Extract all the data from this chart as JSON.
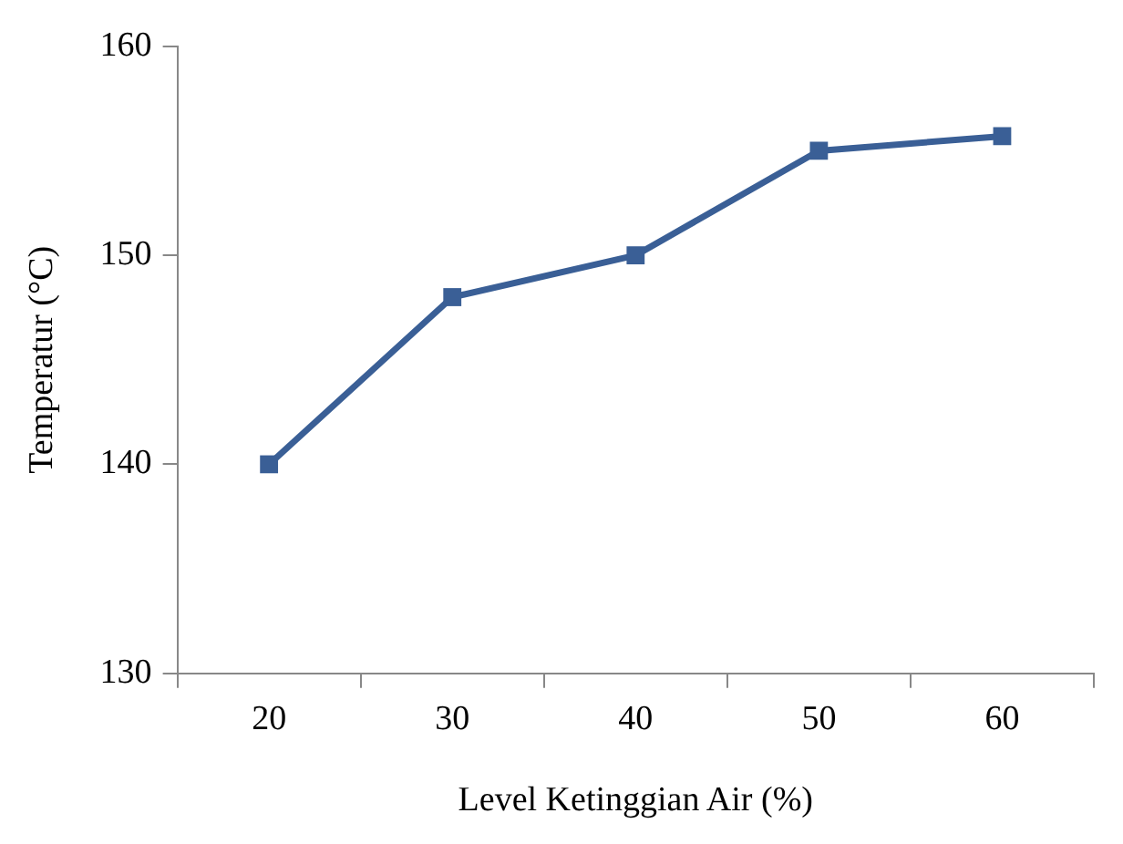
{
  "chart_data": {
    "type": "line",
    "xlabel": "Level Ketinggian Air (%)",
    "ylabel": "Temperatur (°C)",
    "categories": [
      "20",
      "30",
      "40",
      "50",
      "60"
    ],
    "series": [
      {
        "color": "#3a5f96",
        "values": [
          140,
          148,
          150,
          155,
          155.7
        ]
      }
    ],
    "ylim": [
      130,
      160
    ],
    "yticks": [
      130,
      140,
      150,
      160
    ],
    "grid": false,
    "legend": false,
    "marker": "square",
    "line_style": "solid"
  }
}
